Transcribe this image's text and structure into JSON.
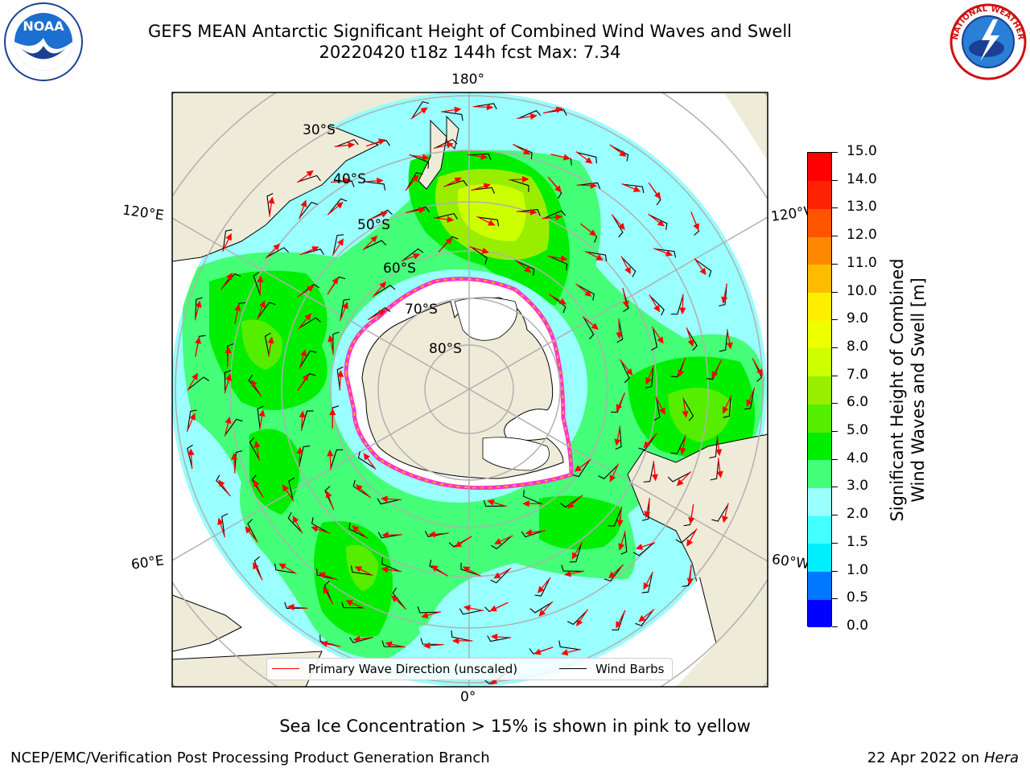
{
  "header": {
    "title_line1": "GEFS MEAN Antarctic Significant Height of Combined Wind Waves and Swell",
    "title_line2": "20220420 t18z 144h fcst   Max: 7.34"
  },
  "map": {
    "projection": "south-polar-stereographic",
    "longitude_labels": {
      "top": "180°",
      "bottom": "0°",
      "upper_left": "120°E",
      "upper_right": "120°W",
      "lower_left": "60°E",
      "lower_right": "60°W"
    },
    "latitude_labels": [
      "30°S",
      "40°S",
      "50°S",
      "60°S",
      "70°S",
      "80°S"
    ],
    "colors": {
      "land": "#efebd9",
      "ice": "#ffffff",
      "ice_edge": "#ff33cc",
      "ice_edge_inner": "#ffb300",
      "grid": "#b0b0b0",
      "arrow": "#ff0000",
      "barb": "#000000"
    }
  },
  "legend": {
    "wave_direction": "Primary Wave Direction (unscaled)",
    "wind_barbs": "Wind Barbs"
  },
  "colorbar": {
    "title_line1": "Significant Height of Combined",
    "title_line2": "Wind Waves and Swell [m]",
    "ticks": [
      "0.0",
      "0.5",
      "1.0",
      "1.5",
      "2.0",
      "3.0",
      "4.0",
      "5.0",
      "6.0",
      "7.0",
      "8.0",
      "9.0",
      "10.0",
      "11.0",
      "12.0",
      "13.0",
      "14.0",
      "15.0"
    ],
    "colors": [
      "#0000ff",
      "#0077ff",
      "#00eeff",
      "#44ffff",
      "#99ffff",
      "#44ff77",
      "#00ee00",
      "#55ee00",
      "#99ee00",
      "#ccff00",
      "#eeff00",
      "#ffee00",
      "#ffbb00",
      "#ff8800",
      "#ff5500",
      "#ff2200",
      "#ff0000"
    ]
  },
  "footer": {
    "note": "Sea Ice Concentration > 15% is shown in pink to yellow",
    "credit": "NCEP/EMC/Verification Post Processing Product Generation Branch",
    "date": "22 Apr 2022 on",
    "machine": "Hera"
  },
  "logos": {
    "noaa_text": "NOAA",
    "nws_text": "NATIONAL WEATHER SERVICE"
  }
}
